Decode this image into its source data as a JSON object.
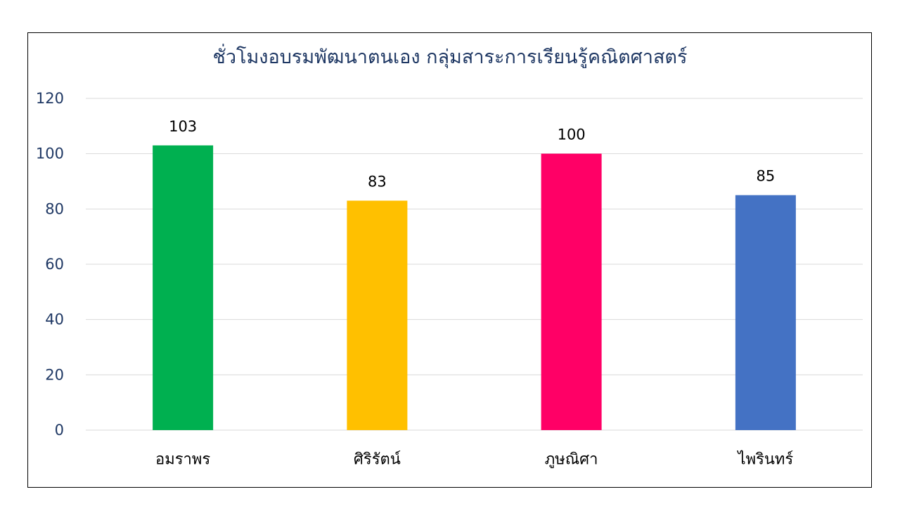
{
  "chart_data": {
    "type": "bar",
    "title": "ชั่วโมงอบรมพัฒนาตนเอง กลุ่มสาระการเรียนรู้คณิตศาสตร์",
    "categories": [
      "อมราพร",
      "ศิริรัตน์",
      "ภูษณิศา",
      "ไพรินทร์"
    ],
    "values": [
      103,
      83,
      100,
      85
    ],
    "bar_colors": [
      "#00B050",
      "#FFC000",
      "#FF0066",
      "#4472C4"
    ],
    "ylim": [
      0,
      120
    ],
    "yticks": [
      0,
      20,
      40,
      60,
      80,
      100,
      120
    ],
    "grid": true,
    "legend": "none",
    "data_labels": true
  },
  "colors": {
    "title": "#1F3864",
    "axis_tick_labels": "#1F3864",
    "category_labels": "#000000",
    "data_labels": "#000000",
    "gridline": "#D9D9D9",
    "frame": "#000000"
  }
}
